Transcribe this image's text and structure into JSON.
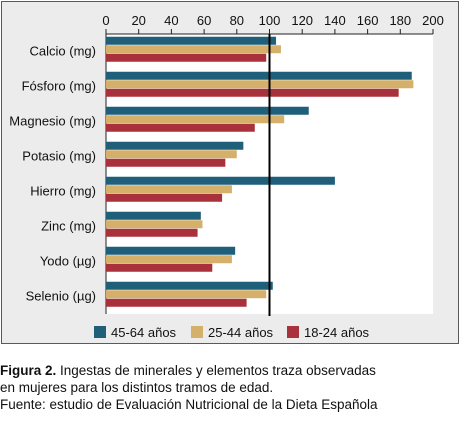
{
  "chart_data": {
    "type": "bar",
    "orientation": "horizontal",
    "categories": [
      "Calcio (mg)",
      "Fósforo (mg)",
      "Magnesio (mg)",
      "Potasio (mg)",
      "Hierro (mg)",
      "Zinc (mg)",
      "Yodo (µg)",
      "Selenio (µg)"
    ],
    "series": [
      {
        "name": "45-64 años",
        "color": "#1f5f7a",
        "values": [
          104,
          187,
          124,
          84,
          140,
          58,
          79,
          102
        ]
      },
      {
        "name": "25-44 años",
        "color": "#d4b06a",
        "values": [
          107,
          188,
          109,
          80,
          77,
          59,
          77,
          98
        ]
      },
      {
        "name": "18-24 años",
        "color": "#a8313b",
        "values": [
          98,
          179,
          91,
          73,
          71,
          56,
          65,
          86
        ]
      }
    ],
    "xlim": [
      0,
      200
    ],
    "xticks": [
      0,
      20,
      40,
      60,
      80,
      100,
      120,
      140,
      160,
      180,
      200
    ],
    "reference_line": 100,
    "axis_position": "top",
    "legend_position": "bottom"
  },
  "caption": {
    "figure_label": "Figura 2.",
    "line1_rest": " Ingestas de minerales y elementos traza observadas",
    "line2": "en mujeres para los distintos tramos de edad.",
    "line3": "Fuente: estudio de Evaluación Nutricional de la Dieta Española"
  }
}
